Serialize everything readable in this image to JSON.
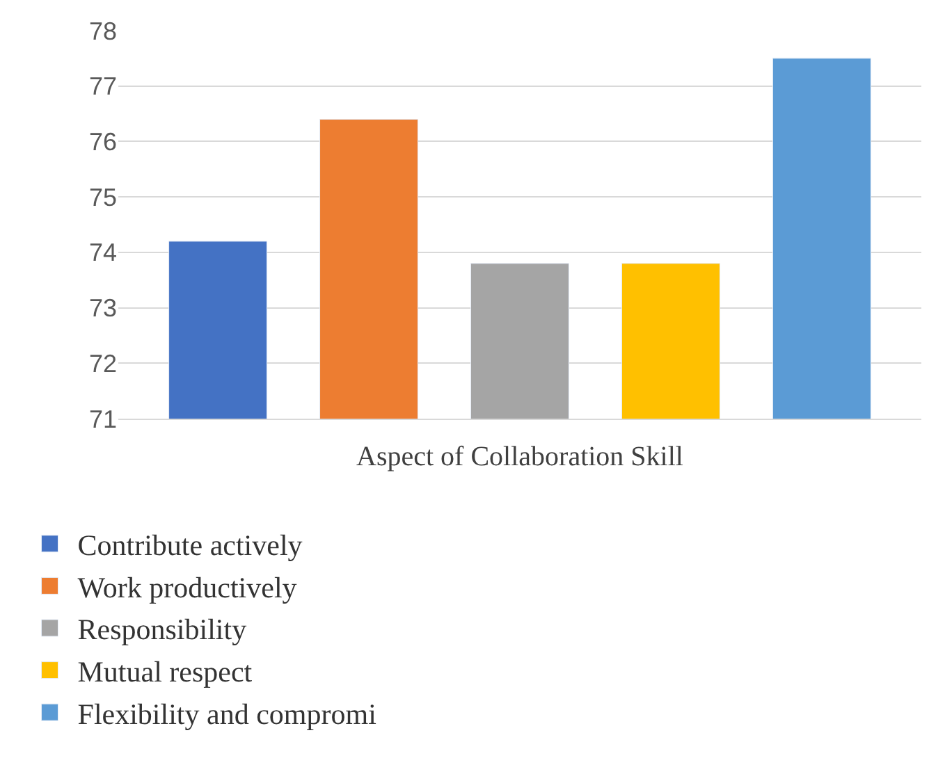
{
  "chart_data": {
    "type": "bar",
    "xlabel": "Aspect of Collaboration Skill",
    "categories": [
      null
    ],
    "series": [
      {
        "name": "Contribute actively",
        "color": "#4472c4",
        "values": [
          74.2
        ]
      },
      {
        "name": "Work productively",
        "color": "#ed7d31",
        "values": [
          76.4
        ]
      },
      {
        "name": "Responsibility",
        "color": "#a5a5a5",
        "values": [
          73.8
        ]
      },
      {
        "name": "Mutual respect",
        "color": "#ffc000",
        "values": [
          73.8
        ]
      },
      {
        "name": "Flexibility and compromi",
        "color": "#5b9bd5",
        "values": [
          77.5
        ]
      }
    ],
    "ylim": [
      71,
      78
    ],
    "yticks": [
      71,
      72,
      73,
      74,
      75,
      76,
      77,
      78
    ],
    "grid": "y",
    "legend": "bottom"
  }
}
